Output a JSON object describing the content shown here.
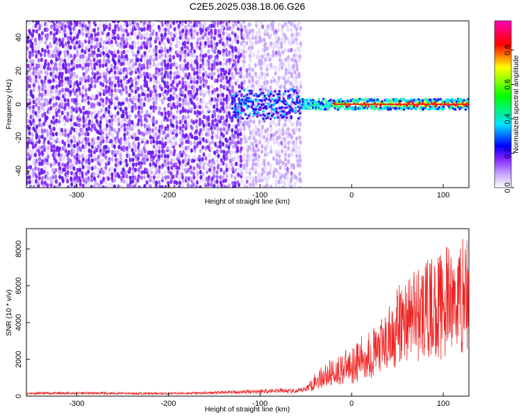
{
  "title": "C2E5.2025.038.18.06.G26",
  "chart_data": [
    {
      "type": "heatmap",
      "title": "C2E5.2025.038.18.06.G26",
      "xlabel": "Height of straight line (km)",
      "ylabel": "Frequency (Hz)",
      "xlim": [
        -355,
        128
      ],
      "ylim": [
        -50,
        50
      ],
      "xticks": [
        "-300",
        "-200",
        "-100",
        "0",
        "100"
      ],
      "yticks": [
        "40",
        "20",
        "0",
        "-20",
        "-40"
      ],
      "colorbar": {
        "label": "Normalized spectral amplitude",
        "range": [
          0,
          0.97
        ],
        "ticks": [
          "0.0",
          "0.2",
          "0.4",
          "0.6",
          "0.8"
        ],
        "colormap": "rainbow (white-purple-blue-cyan-green-yellow-red-magenta)"
      },
      "features": {
        "broadband_noise_extent_km": [
          -355,
          -55
        ],
        "signal_center_frequency_hz": 0,
        "signal_onset_km": -55,
        "peak_amplitude_region_km": [
          -20,
          128
        ]
      },
      "grid": false
    },
    {
      "type": "line",
      "xlabel": "Height of straight line (km)",
      "ylabel": "SNR (10 * v/v)",
      "xlim": [
        -355,
        128
      ],
      "ylim": [
        0,
        9100
      ],
      "xticks": [
        "-300",
        "-200",
        "-100",
        "0",
        "100"
      ],
      "yticks": [
        "0",
        "2000",
        "4000",
        "6000",
        "8000"
      ],
      "series": [
        {
          "color": "#ee2222",
          "x": [
            -355,
            -300,
            -250,
            -200,
            -150,
            -110,
            -80,
            -60,
            -50,
            -40,
            -30,
            -20,
            -10,
            0,
            10,
            20,
            30,
            40,
            50,
            60,
            70,
            80,
            90,
            100,
            110,
            120,
            128
          ],
          "y": [
            150,
            160,
            150,
            140,
            180,
            250,
            300,
            250,
            400,
            800,
            1100,
            1300,
            1500,
            1700,
            2000,
            2300,
            2500,
            3000,
            3700,
            4200,
            4500,
            4600,
            4800,
            5000,
            5200,
            5500,
            5700
          ]
        }
      ],
      "grid": false
    }
  ]
}
